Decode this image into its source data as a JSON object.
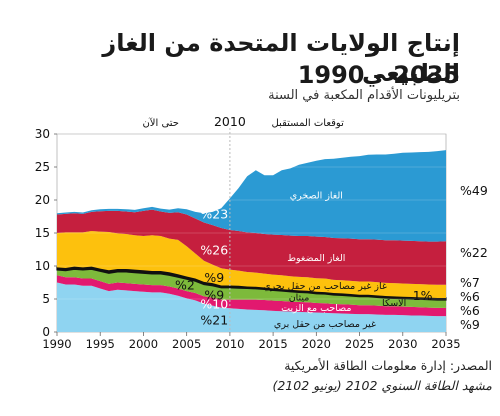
{
  "header": {
    "title_line1": "إنتاج الولايات المتحدة من الغاز الطبيعي",
    "title_line2": "1990 – 2035",
    "subtitle": "بتريليونات الأقدام المكعبة في السنة"
  },
  "source": {
    "line1": "المصدر: إدارة معلومات الطاقة الأمريكية",
    "line2": "مشهد الطاقة السنوي 2102 (يونيو 2102)"
  },
  "colors": {
    "shale": "#2b9ad3",
    "tight": "#c51f3e",
    "coalbed": "#fdc10d",
    "alaska": "#111111",
    "offshore": "#7dba3b",
    "associated": "#e2196f",
    "conventional": "#8fd4f1",
    "divider": "#bbbbbb"
  },
  "chart_data": {
    "type": "area",
    "stacked": true,
    "x_ticks": [
      1990,
      1995,
      2000,
      2005,
      2010,
      2015,
      2020,
      2025,
      2030,
      2035
    ],
    "y_ticks": [
      0,
      5,
      10,
      15,
      20,
      25,
      30
    ],
    "xlim": [
      1990,
      2035
    ],
    "ylim": [
      0,
      30
    ],
    "grid": true,
    "divider_year": 2010,
    "divider_label": "2010",
    "history_label": "حتى الآن",
    "projection_label": "توقعات المستقبل",
    "years": [
      1990,
      1991,
      1992,
      1993,
      1994,
      1995,
      1996,
      1997,
      1998,
      1999,
      2000,
      2001,
      2002,
      2003,
      2004,
      2005,
      2006,
      2007,
      2008,
      2009,
      2010,
      2011,
      2012,
      2013,
      2014,
      2015,
      2016,
      2017,
      2018,
      2019,
      2020,
      2021,
      2022,
      2023,
      2024,
      2025,
      2026,
      2027,
      2028,
      2029,
      2030,
      2031,
      2032,
      2033,
      2034,
      2035
    ],
    "series": [
      {
        "name": "غير مصاحب من حقل بري",
        "key": "conventional",
        "values": [
          7.5,
          7.2,
          7.2,
          7.0,
          7.0,
          6.6,
          6.2,
          6.4,
          6.3,
          6.2,
          6.1,
          6.0,
          6.0,
          5.8,
          5.5,
          5.1,
          4.8,
          4.3,
          4.0,
          3.7,
          3.6,
          3.5,
          3.4,
          3.35,
          3.3,
          3.2,
          3.15,
          3.1,
          3.05,
          3.0,
          2.95,
          2.9,
          2.85,
          2.8,
          2.75,
          2.7,
          2.7,
          2.65,
          2.6,
          2.6,
          2.55,
          2.5,
          2.5,
          2.45,
          2.4,
          2.4
        ]
      },
      {
        "name": "مصاحب مع الزيت",
        "key": "associated",
        "values": [
          1.1,
          1.1,
          1.1,
          1.1,
          1.1,
          1.1,
          1.1,
          1.1,
          1.1,
          1.1,
          1.1,
          1.1,
          1.1,
          1.1,
          1.1,
          1.1,
          1.1,
          1.1,
          1.2,
          1.2,
          1.3,
          1.4,
          1.5,
          1.55,
          1.55,
          1.55,
          1.55,
          1.5,
          1.5,
          1.5,
          1.45,
          1.45,
          1.4,
          1.4,
          1.4,
          1.35,
          1.35,
          1.35,
          1.3,
          1.3,
          1.3,
          1.3,
          1.25,
          1.25,
          1.25,
          1.25
        ]
      },
      {
        "name": "ميثان",
        "key": "offshore",
        "values": [
          0.8,
          1.0,
          1.2,
          1.3,
          1.4,
          1.5,
          1.6,
          1.6,
          1.7,
          1.7,
          1.7,
          1.7,
          1.7,
          1.7,
          1.7,
          1.8,
          1.8,
          1.8,
          1.8,
          1.8,
          1.8,
          1.75,
          1.7,
          1.65,
          1.6,
          1.55,
          1.5,
          1.5,
          1.45,
          1.45,
          1.4,
          1.4,
          1.35,
          1.35,
          1.3,
          1.3,
          1.3,
          1.25,
          1.25,
          1.2,
          1.2,
          1.2,
          1.2,
          1.2,
          1.2,
          1.2
        ]
      },
      {
        "name": "الاسكا",
        "key": "alaska",
        "values": [
          0.4,
          0.4,
          0.4,
          0.4,
          0.4,
          0.4,
          0.45,
          0.45,
          0.45,
          0.45,
          0.45,
          0.45,
          0.45,
          0.45,
          0.45,
          0.4,
          0.4,
          0.4,
          0.4,
          0.35,
          0.35,
          0.35,
          0.3,
          0.3,
          0.3,
          0.3,
          0.3,
          0.3,
          0.3,
          0.3,
          0.3,
          0.3,
          0.3,
          0.3,
          0.3,
          0.3,
          0.3,
          0.3,
          0.3,
          0.3,
          0.3,
          0.3,
          0.3,
          0.3,
          0.3,
          0.3
        ]
      },
      {
        "name": "غاز غير مصاحب من حقل بحري",
        "key": "coalbed",
        "values": [
          5.2,
          5.4,
          5.2,
          5.3,
          5.4,
          5.6,
          5.8,
          5.4,
          5.3,
          5.2,
          5.2,
          5.4,
          5.3,
          5.1,
          5.2,
          4.6,
          3.8,
          3.2,
          2.8,
          2.6,
          2.4,
          2.3,
          2.2,
          2.15,
          2.1,
          2.1,
          2.1,
          2.05,
          2.05,
          2.05,
          2.05,
          2.05,
          2.0,
          2.0,
          2.0,
          2.0,
          2.0,
          2.0,
          2.0,
          2.0,
          2.0,
          2.0,
          2.0,
          2.0,
          2.0,
          2.0
        ]
      },
      {
        "name": "الغاز المضغوط",
        "key": "tight",
        "values": [
          2.8,
          2.8,
          2.9,
          2.8,
          2.9,
          3.1,
          3.2,
          3.4,
          3.4,
          3.5,
          3.8,
          3.9,
          3.7,
          3.9,
          4.2,
          4.8,
          5.3,
          5.8,
          6.0,
          6.1,
          6.0,
          6.0,
          6.0,
          6.0,
          6.0,
          6.05,
          6.1,
          6.15,
          6.2,
          6.25,
          6.3,
          6.3,
          6.35,
          6.35,
          6.4,
          6.4,
          6.4,
          6.45,
          6.45,
          6.5,
          6.5,
          6.5,
          6.5,
          6.5,
          6.55,
          6.6
        ]
      },
      {
        "name": "الغاز الصخري",
        "key": "shale",
        "values": [
          0.2,
          0.2,
          0.2,
          0.2,
          0.25,
          0.3,
          0.3,
          0.3,
          0.35,
          0.35,
          0.4,
          0.4,
          0.45,
          0.5,
          0.6,
          0.8,
          1.0,
          1.4,
          2.0,
          3.0,
          4.8,
          6.5,
          8.5,
          9.5,
          8.9,
          9.0,
          9.8,
          10.2,
          10.8,
          11.1,
          11.5,
          11.8,
          12.0,
          12.2,
          12.4,
          12.6,
          12.8,
          12.9,
          13.0,
          13.1,
          13.3,
          13.4,
          13.5,
          13.6,
          13.7,
          13.8
        ]
      }
    ],
    "area_labels": [
      {
        "key": "shale",
        "text": "الغاز الصخري"
      },
      {
        "key": "tight",
        "text": "الغاز المضغوط"
      },
      {
        "key": "coalbed",
        "text": "غاز غير مصاحب من حقل بحري"
      },
      {
        "key": "offshore",
        "text": "ميثان"
      },
      {
        "key": "associated",
        "text": "مصاحب مع الزيت"
      },
      {
        "key": "conventional",
        "text": "غير مصاحب من حقل بري"
      },
      {
        "key": "alaska",
        "text": "الاسكا"
      }
    ],
    "share_2010": [
      {
        "key": "shale",
        "text": "%23"
      },
      {
        "key": "tight",
        "text": "%26"
      },
      {
        "key": "coalbed",
        "text": "%9"
      },
      {
        "key": "alaska",
        "text": "%2"
      },
      {
        "key": "offshore",
        "text": "%9"
      },
      {
        "key": "associated",
        "text": "%10"
      },
      {
        "key": "conventional",
        "text": "%21"
      }
    ],
    "share_2035": [
      {
        "key": "shale",
        "text": "%49"
      },
      {
        "key": "tight",
        "text": "%22"
      },
      {
        "key": "coalbed",
        "text": "%7"
      },
      {
        "key": "alaska",
        "text": "1%"
      },
      {
        "key": "offshore",
        "text": "%6"
      },
      {
        "key": "associated",
        "text": "%6"
      },
      {
        "key": "conventional",
        "text": "%9"
      }
    ]
  }
}
